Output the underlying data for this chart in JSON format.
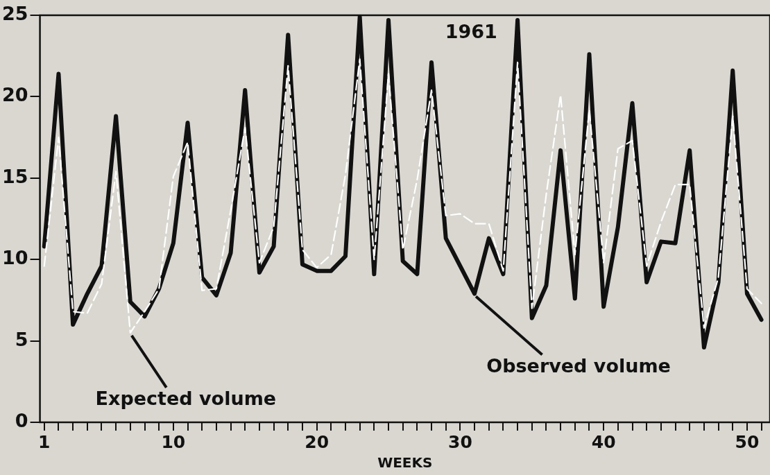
{
  "chart_data": {
    "type": "line",
    "xlabel": "WEEKS",
    "grid": false,
    "legend": false,
    "marker": "none",
    "annotations": [
      "1961",
      {
        "text": "Expected volume",
        "x": 7,
        "y": 5.5
      },
      {
        "text": "Observed volume",
        "x": 31,
        "y": 7.9
      }
    ],
    "x": [
      1,
      2,
      3,
      4,
      5,
      6,
      7,
      8,
      9,
      10,
      11,
      12,
      13,
      14,
      15,
      16,
      17,
      18,
      19,
      20,
      21,
      22,
      23,
      24,
      25,
      26,
      27,
      28,
      29,
      30,
      31,
      32,
      33,
      34,
      35,
      36,
      37,
      38,
      39,
      40,
      41,
      42,
      43,
      44,
      45,
      46,
      47,
      48,
      49,
      50,
      51
    ],
    "xlim": [
      0.7,
      51.6
    ],
    "xticks": [
      1,
      {
        "value": 2,
        "label": null
      },
      {
        "value": 3,
        "label": null
      },
      {
        "value": 4,
        "label": null
      },
      {
        "value": 5,
        "label": null
      },
      {
        "value": 6,
        "label": null
      },
      {
        "value": 7,
        "label": null
      },
      {
        "value": 8,
        "label": null
      },
      {
        "value": 9,
        "label": null
      },
      10,
      {
        "value": 11,
        "label": null
      },
      {
        "value": 12,
        "label": null
      },
      {
        "value": 13,
        "label": null
      },
      {
        "value": 14,
        "label": null
      },
      {
        "value": 15,
        "label": null
      },
      {
        "value": 16,
        "label": null
      },
      {
        "value": 17,
        "label": null
      },
      {
        "value": 18,
        "label": null
      },
      {
        "value": 19,
        "label": null
      },
      20,
      {
        "value": 21,
        "label": null
      },
      {
        "value": 22,
        "label": null
      },
      {
        "value": 23,
        "label": null
      },
      {
        "value": 24,
        "label": null
      },
      {
        "value": 25,
        "label": null
      },
      {
        "value": 26,
        "label": null
      },
      {
        "value": 27,
        "label": null
      },
      {
        "value": 28,
        "label": null
      },
      {
        "value": 29,
        "label": null
      },
      30,
      {
        "value": 31,
        "label": null
      },
      {
        "value": 32,
        "label": null
      },
      {
        "value": 33,
        "label": null
      },
      {
        "value": 34,
        "label": null
      },
      {
        "value": 35,
        "label": null
      },
      {
        "value": 36,
        "label": null
      },
      {
        "value": 37,
        "label": null
      },
      {
        "value": 38,
        "label": null
      },
      {
        "value": 39,
        "label": null
      },
      40,
      {
        "value": 41,
        "label": null
      },
      {
        "value": 42,
        "label": null
      },
      {
        "value": 43,
        "label": null
      },
      {
        "value": 44,
        "label": null
      },
      {
        "value": 45,
        "label": null
      },
      {
        "value": 46,
        "label": null
      },
      {
        "value": 47,
        "label": null
      },
      {
        "value": 48,
        "label": null
      },
      {
        "value": 49,
        "label": null
      },
      50,
      {
        "value": 51,
        "label": null
      }
    ],
    "ylim": [
      0,
      25
    ],
    "yticks": [
      0,
      5,
      10,
      15,
      20,
      25
    ],
    "series": [
      {
        "color": "#111111",
        "line_style": "solid",
        "values": [
          10.8,
          21.4,
          6.0,
          7.9,
          9.6,
          18.8,
          7.4,
          6.5,
          8.2,
          11.0,
          18.4,
          8.9,
          7.8,
          10.4,
          20.4,
          9.2,
          10.8,
          23.8,
          9.7,
          9.3,
          9.3,
          10.2,
          24.9,
          9.1,
          24.7,
          9.9,
          9.1,
          22.1,
          11.3,
          9.6,
          7.9,
          11.3,
          9.1,
          24.7,
          6.4,
          8.4,
          16.7,
          7.6,
          22.6,
          7.1,
          12.0,
          19.6,
          8.6,
          11.1,
          11.0,
          16.7,
          4.6,
          8.6,
          21.6,
          7.9,
          6.3
        ]
      },
      {
        "color": "#ffffff",
        "line_style": "dashed",
        "values": [
          9.6,
          17.5,
          6.8,
          6.7,
          8.5,
          15.4,
          5.5,
          6.8,
          8.2,
          15.1,
          17.2,
          8.1,
          8.2,
          13.0,
          18.1,
          9.8,
          12.0,
          21.9,
          10.6,
          9.5,
          10.3,
          15.2,
          22.3,
          10.0,
          21.4,
          10.6,
          14.9,
          20.4,
          12.7,
          12.8,
          12.2,
          12.2,
          9.3,
          22.1,
          7.0,
          14.0,
          20.1,
          10.3,
          19.2,
          9.8,
          16.8,
          17.3,
          9.6,
          12.3,
          14.6,
          14.6,
          5.8,
          8.9,
          18.8,
          8.2,
          7.3
        ]
      }
    ]
  }
}
